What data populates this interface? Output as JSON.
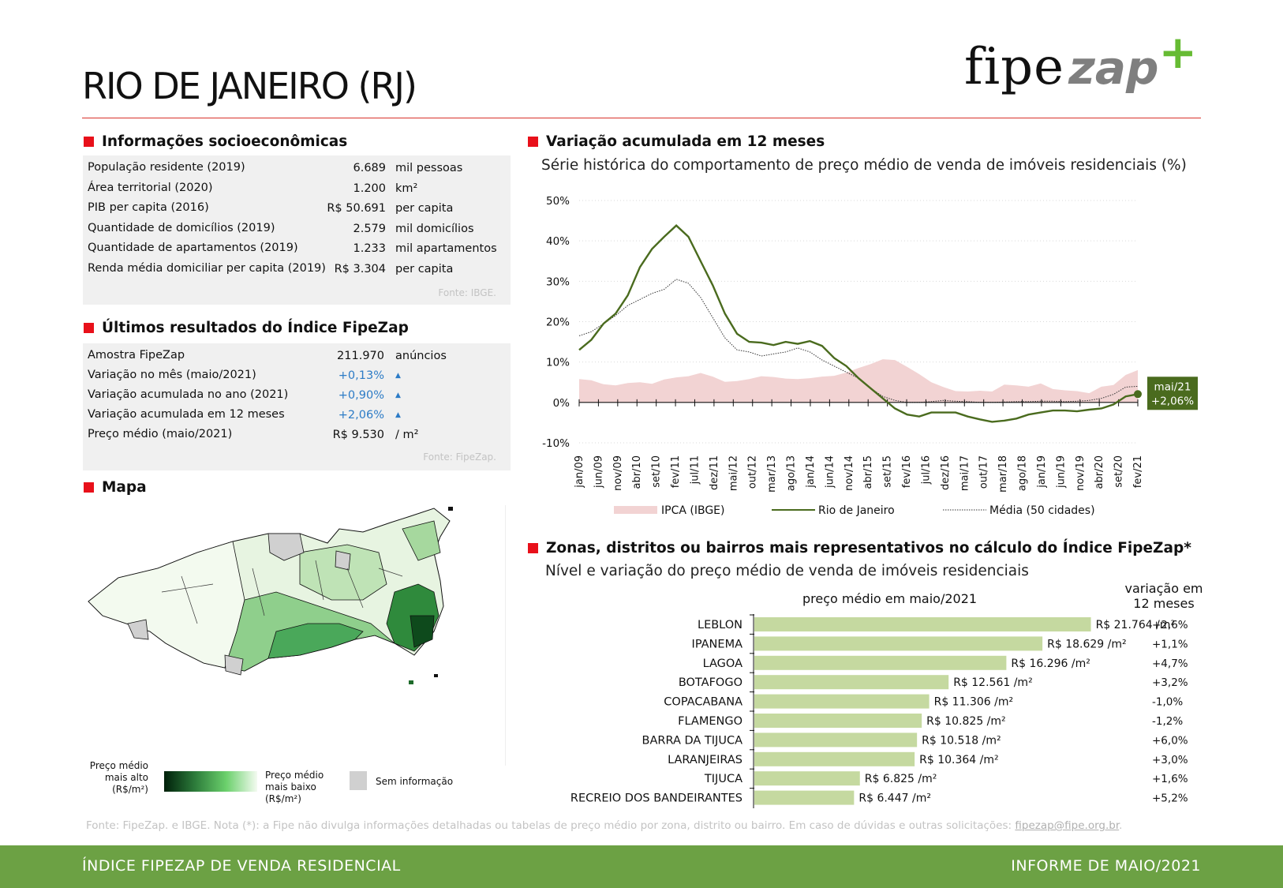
{
  "header": {
    "title": "RIO DE JANEIRO (RJ)",
    "logo_fipe": "fipe",
    "logo_zap": "zap",
    "logo_plus": "+"
  },
  "socio": {
    "heading": "Informações socioeconômicas",
    "rows": [
      {
        "label": "População residente (2019)",
        "value": "6.689",
        "unit": "mil pessoas"
      },
      {
        "label": "Área territorial (2020)",
        "value": "1.200",
        "unit": "km²"
      },
      {
        "label": "PIB per capita (2016)",
        "value": "R$ 50.691",
        "unit": "per capita"
      },
      {
        "label": "Quantidade de domicílios (2019)",
        "value": "2.579",
        "unit": "mil domicílios"
      },
      {
        "label": "Quantidade de apartamentos (2019)",
        "value": "1.233",
        "unit": "mil apartamentos"
      },
      {
        "label": "Renda média domiciliar per capita (2019)",
        "value": "R$ 3.304",
        "unit": "per capita"
      }
    ],
    "source": "Fonte: IBGE."
  },
  "index": {
    "heading": "Últimos resultados do Índice FipeZap",
    "rows": [
      {
        "label": "Amostra FipeZap",
        "value": "211.970",
        "unit": "anúncios",
        "up": false
      },
      {
        "label": "Variação no mês (maio/2021)",
        "value": "+0,13%",
        "unit": "▲",
        "up": true
      },
      {
        "label": "Variação acumulada no ano (2021)",
        "value": "+0,90%",
        "unit": "▲",
        "up": true
      },
      {
        "label": "Variação acumulada em 12 meses",
        "value": "+2,06%",
        "unit": "▲",
        "up": true
      },
      {
        "label": "Preço médio (maio/2021)",
        "value": "R$ 9.530",
        "unit": "/ m²",
        "up": false
      }
    ],
    "source": "Fonte: FipeZap."
  },
  "map": {
    "heading": "Mapa",
    "legend_high": [
      "Preço médio",
      "mais alto",
      "(R$/m²)"
    ],
    "legend_low": [
      "Preço médio",
      "mais baixo",
      "(R$/m²)"
    ],
    "legend_none": "Sem informação",
    "colors": {
      "high": "#00200a",
      "mid": "#4cbd5e",
      "low": "#f4fbf1",
      "none": "#d0d0d0"
    }
  },
  "chart_data": [
    {
      "type": "line",
      "heading": "Variação acumulada em 12 meses",
      "subtitle": "Série histórica do comportamento de preço médio de venda de imóveis residenciais (%)",
      "ylim": [
        -10,
        50
      ],
      "yticks": [
        "50%",
        "40%",
        "30%",
        "20%",
        "10%",
        "0%",
        "-10%"
      ],
      "x_tick_labels": [
        "jan/09",
        "jun/09",
        "nov/09",
        "abr/10",
        "set/10",
        "fev/11",
        "jul/11",
        "dez/11",
        "mai/12",
        "out/12",
        "mar/13",
        "ago/13",
        "jan/14",
        "jun/14",
        "nov/14",
        "abr/15",
        "set/15",
        "fev/16",
        "jul/16",
        "dez/16",
        "mai/17",
        "out/17",
        "mar/18",
        "ago/18",
        "jan/19",
        "jun/19",
        "nov/19",
        "abr/20",
        "set/20",
        "fev/21"
      ],
      "series": [
        {
          "name": "IPCA (IBGE)",
          "kind": "area",
          "color": "#f2d3d3",
          "values": [
            5.8,
            5.5,
            4.5,
            4.2,
            4.8,
            5.0,
            4.6,
            5.7,
            6.2,
            6.5,
            7.3,
            6.4,
            5.1,
            5.3,
            5.8,
            6.5,
            6.3,
            5.9,
            5.8,
            6.0,
            6.4,
            6.6,
            7.4,
            8.5,
            9.5,
            10.7,
            10.5,
            8.8,
            7.0,
            5.0,
            3.8,
            2.8,
            2.7,
            2.9,
            2.7,
            4.4,
            4.2,
            3.9,
            4.7,
            3.3,
            3.0,
            2.8,
            2.3,
            3.9,
            4.3,
            6.8,
            8.0
          ]
        },
        {
          "name": "Rio de Janeiro",
          "kind": "line",
          "color": "#4a6b1e",
          "values": [
            13,
            15.5,
            19.5,
            22,
            26.5,
            33.5,
            38,
            41,
            43.8,
            41,
            35,
            29,
            22,
            17,
            15,
            14.8,
            14.2,
            15,
            14.5,
            15.2,
            14,
            11,
            9,
            6,
            3.5,
            1,
            -1.5,
            -3,
            -3.5,
            -2.5,
            -2.5,
            -2.5,
            -3.5,
            -4.2,
            -4.8,
            -4.5,
            -4,
            -3,
            -2.5,
            -2,
            -2,
            -2.2,
            -1.8,
            -1.5,
            -0.5,
            1.5,
            2.06
          ]
        },
        {
          "name": "Média (50 cidades)",
          "kind": "dotted",
          "color": "#333333",
          "values": [
            16.5,
            17.5,
            19.5,
            21.5,
            24,
            25.5,
            27,
            28,
            30.5,
            29.5,
            26,
            21,
            16,
            13,
            12.5,
            11.5,
            12,
            12.5,
            13.5,
            12.5,
            10.5,
            9,
            7.5,
            6,
            3.5,
            1.5,
            0.5,
            0,
            0,
            0.2,
            0.5,
            0.3,
            0.2,
            0,
            0,
            0.1,
            0.2,
            0.2,
            0.3,
            0.3,
            0.2,
            0.3,
            0.5,
            1,
            2,
            3.8,
            4
          ]
        }
      ],
      "annotation": {
        "label": "mai/21",
        "value": "+2,06%"
      }
    },
    {
      "type": "bar",
      "heading": "Zonas, distritos ou bairros mais representativos no cálculo do Índice FipeZap*",
      "subtitle": "Nível e variação do preço médio de venda de imóveis residenciais",
      "bar_header": "preço médio em maio/2021",
      "var_header": [
        "variação em",
        "12 meses"
      ],
      "color": "#c5d9a0",
      "xlim": [
        0,
        25000
      ],
      "categories": [
        "LEBLON",
        "IPANEMA",
        "LAGOA",
        "BOTAFOGO",
        "COPACABANA",
        "FLAMENGO",
        "BARRA DA TIJUCA",
        "LARANJEIRAS",
        "TIJUCA",
        "RECREIO DOS BANDEIRANTES"
      ],
      "values": [
        21764,
        18629,
        16296,
        12561,
        11306,
        10825,
        10518,
        10364,
        6825,
        6447
      ],
      "value_labels": [
        "R$ 21.764 /m²",
        "R$ 18.629 /m²",
        "R$ 16.296 /m²",
        "R$ 12.561 /m²",
        "R$ 11.306 /m²",
        "R$ 10.825 /m²",
        "R$ 10.518 /m²",
        "R$ 10.364 /m²",
        "R$ 6.825 /m²",
        "R$ 6.447 /m²"
      ],
      "variation": [
        "+2,6%",
        "+1,1%",
        "+4,7%",
        "+3,2%",
        "-1,0%",
        "-1,2%",
        "+6,0%",
        "+3,0%",
        "+1,6%",
        "+5,2%"
      ]
    }
  ],
  "footnote": {
    "text": "Fonte: FipeZap. e IBGE. Nota (*): a Fipe não divulga informações detalhadas ou tabelas de preço médio por zona, distrito ou bairro. Em caso de dúvidas e outras solicitações: ",
    "email": "fipezap@fipe.org.br",
    "end": "."
  },
  "footer": {
    "left": "ÍNDICE FIPEZAP DE VENDA RESIDENCIAL",
    "right": "INFORME DE MAIO/2021"
  }
}
